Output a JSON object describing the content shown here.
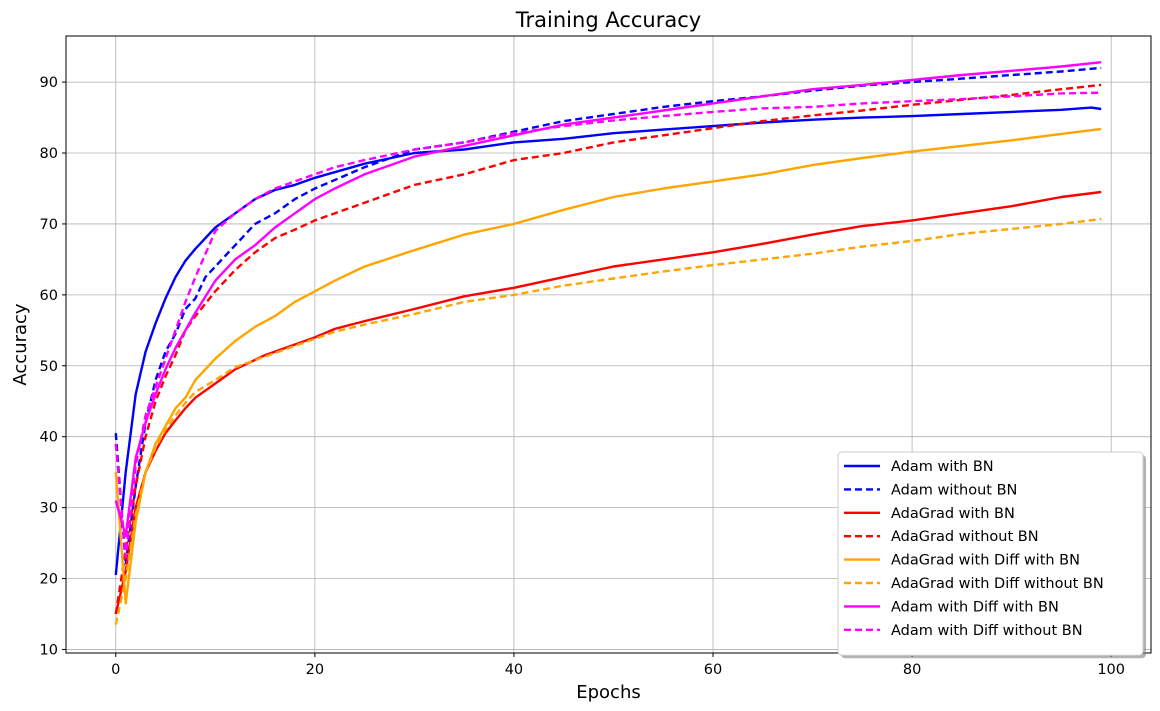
{
  "chart_data": {
    "type": "line",
    "title": "Training Accuracy",
    "xlabel": "Epochs",
    "ylabel": "Accuracy",
    "xlim": [
      -5,
      104
    ],
    "ylim": [
      9.5,
      96.5
    ],
    "xticks": [
      0,
      20,
      40,
      60,
      80,
      100
    ],
    "yticks": [
      10,
      20,
      30,
      40,
      50,
      60,
      70,
      80,
      90
    ],
    "grid": true,
    "legend_position": "lower-right",
    "series": [
      {
        "name": "Adam with BN",
        "color": "#0000ff",
        "dash": "solid",
        "points": [
          [
            0,
            20.5
          ],
          [
            1,
            35
          ],
          [
            2,
            46
          ],
          [
            3,
            52
          ],
          [
            4,
            56
          ],
          [
            5,
            59.5
          ],
          [
            6,
            62.5
          ],
          [
            7,
            64.8
          ],
          [
            8,
            66.5
          ],
          [
            10,
            69.5
          ],
          [
            12,
            71.5
          ],
          [
            14,
            73.5
          ],
          [
            16,
            74.8
          ],
          [
            18,
            75.5
          ],
          [
            20,
            76.5
          ],
          [
            25,
            78.5
          ],
          [
            30,
            80
          ],
          [
            35,
            80.5
          ],
          [
            40,
            81.5
          ],
          [
            45,
            82
          ],
          [
            50,
            82.8
          ],
          [
            55,
            83.3
          ],
          [
            60,
            83.8
          ],
          [
            65,
            84.3
          ],
          [
            70,
            84.7
          ],
          [
            75,
            85
          ],
          [
            80,
            85.2
          ],
          [
            85,
            85.5
          ],
          [
            90,
            85.8
          ],
          [
            95,
            86.1
          ],
          [
            98,
            86.4
          ],
          [
            99,
            86.2
          ]
        ]
      },
      {
        "name": "Adam without BN",
        "color": "#0000ff",
        "dash": "dashed",
        "points": [
          [
            0,
            40.5
          ],
          [
            1,
            22
          ],
          [
            2,
            33
          ],
          [
            3,
            42
          ],
          [
            4,
            48
          ],
          [
            5,
            52
          ],
          [
            6,
            54.5
          ],
          [
            7,
            58
          ],
          [
            8,
            59.5
          ],
          [
            9,
            62.5
          ],
          [
            10,
            64
          ],
          [
            12,
            67
          ],
          [
            14,
            70
          ],
          [
            16,
            71.5
          ],
          [
            18,
            73.5
          ],
          [
            20,
            75
          ],
          [
            25,
            78
          ],
          [
            30,
            80.5
          ],
          [
            35,
            81.5
          ],
          [
            40,
            83
          ],
          [
            45,
            84.5
          ],
          [
            50,
            85.5
          ],
          [
            55,
            86.5
          ],
          [
            60,
            87.3
          ],
          [
            65,
            88
          ],
          [
            70,
            88.8
          ],
          [
            75,
            89.5
          ],
          [
            80,
            90
          ],
          [
            85,
            90.5
          ],
          [
            90,
            91
          ],
          [
            95,
            91.5
          ],
          [
            99,
            92
          ]
        ]
      },
      {
        "name": "AdaGrad with BN",
        "color": "#ff0000",
        "dash": "solid",
        "points": [
          [
            0,
            15
          ],
          [
            1,
            21
          ],
          [
            2,
            30
          ],
          [
            3,
            35
          ],
          [
            4,
            38
          ],
          [
            5,
            40.5
          ],
          [
            6,
            42.3
          ],
          [
            7,
            44
          ],
          [
            8,
            45.5
          ],
          [
            10,
            47.5
          ],
          [
            12,
            49.5
          ],
          [
            15,
            51.5
          ],
          [
            18,
            53
          ],
          [
            20,
            54
          ],
          [
            22,
            55.2
          ],
          [
            25,
            56.3
          ],
          [
            30,
            58
          ],
          [
            35,
            59.8
          ],
          [
            40,
            61
          ],
          [
            45,
            62.5
          ],
          [
            50,
            64
          ],
          [
            55,
            65
          ],
          [
            60,
            66
          ],
          [
            65,
            67.2
          ],
          [
            70,
            68.5
          ],
          [
            75,
            69.7
          ],
          [
            80,
            70.5
          ],
          [
            85,
            71.5
          ],
          [
            90,
            72.5
          ],
          [
            95,
            73.8
          ],
          [
            99,
            74.5
          ]
        ]
      },
      {
        "name": "AdaGrad without BN",
        "color": "#ff0000",
        "dash": "dashed",
        "points": [
          [
            0,
            15
          ],
          [
            1,
            24
          ],
          [
            2,
            33
          ],
          [
            3,
            40
          ],
          [
            4,
            45
          ],
          [
            5,
            48.5
          ],
          [
            6,
            51.5
          ],
          [
            7,
            55
          ],
          [
            8,
            57
          ],
          [
            10,
            60.5
          ],
          [
            12,
            63.5
          ],
          [
            14,
            66
          ],
          [
            16,
            68
          ],
          [
            18,
            69.2
          ],
          [
            20,
            70.5
          ],
          [
            25,
            73
          ],
          [
            30,
            75.5
          ],
          [
            35,
            77
          ],
          [
            40,
            79
          ],
          [
            45,
            80
          ],
          [
            50,
            81.5
          ],
          [
            55,
            82.5
          ],
          [
            60,
            83.5
          ],
          [
            65,
            84.5
          ],
          [
            70,
            85.3
          ],
          [
            75,
            86
          ],
          [
            80,
            86.8
          ],
          [
            85,
            87.5
          ],
          [
            90,
            88.2
          ],
          [
            95,
            89
          ],
          [
            99,
            89.6
          ]
        ]
      },
      {
        "name": "AdaGrad with Diff with BN",
        "color": "#ffa500",
        "dash": "solid",
        "points": [
          [
            0,
            35
          ],
          [
            1,
            16.5
          ],
          [
            2,
            28
          ],
          [
            3,
            35
          ],
          [
            4,
            39
          ],
          [
            5,
            41.5
          ],
          [
            6,
            44
          ],
          [
            7,
            45.5
          ],
          [
            8,
            48
          ],
          [
            10,
            51
          ],
          [
            12,
            53.5
          ],
          [
            14,
            55.5
          ],
          [
            16,
            57
          ],
          [
            18,
            59
          ],
          [
            20,
            60.5
          ],
          [
            22,
            62
          ],
          [
            25,
            64
          ],
          [
            30,
            66.3
          ],
          [
            35,
            68.5
          ],
          [
            40,
            70
          ],
          [
            45,
            72
          ],
          [
            50,
            73.8
          ],
          [
            55,
            75
          ],
          [
            60,
            76
          ],
          [
            65,
            77
          ],
          [
            70,
            78.3
          ],
          [
            75,
            79.3
          ],
          [
            80,
            80.2
          ],
          [
            85,
            81
          ],
          [
            90,
            81.8
          ],
          [
            95,
            82.7
          ],
          [
            99,
            83.4
          ]
        ]
      },
      {
        "name": "AdaGrad with Diff without BN",
        "color": "#ffa500",
        "dash": "dashed",
        "points": [
          [
            0,
            13.5
          ],
          [
            1,
            20
          ],
          [
            2,
            29
          ],
          [
            3,
            35
          ],
          [
            4,
            38.5
          ],
          [
            5,
            41
          ],
          [
            6,
            43
          ],
          [
            7,
            44.8
          ],
          [
            8,
            46.3
          ],
          [
            10,
            48
          ],
          [
            12,
            49.8
          ],
          [
            15,
            51.3
          ],
          [
            18,
            52.8
          ],
          [
            20,
            53.8
          ],
          [
            22,
            54.8
          ],
          [
            25,
            55.8
          ],
          [
            30,
            57.3
          ],
          [
            35,
            59
          ],
          [
            40,
            60
          ],
          [
            45,
            61.3
          ],
          [
            50,
            62.3
          ],
          [
            55,
            63.3
          ],
          [
            60,
            64.2
          ],
          [
            65,
            65
          ],
          [
            70,
            65.8
          ],
          [
            75,
            66.8
          ],
          [
            80,
            67.6
          ],
          [
            85,
            68.6
          ],
          [
            90,
            69.3
          ],
          [
            95,
            70
          ],
          [
            99,
            70.7
          ]
        ]
      },
      {
        "name": "Adam with Diff with BN",
        "color": "#ff00ff",
        "dash": "solid",
        "points": [
          [
            0,
            31
          ],
          [
            1,
            26
          ],
          [
            2,
            37
          ],
          [
            3,
            42
          ],
          [
            4,
            46
          ],
          [
            5,
            49.5
          ],
          [
            6,
            52.5
          ],
          [
            7,
            55
          ],
          [
            8,
            57.5
          ],
          [
            10,
            62
          ],
          [
            12,
            65
          ],
          [
            14,
            67
          ],
          [
            16,
            69.5
          ],
          [
            18,
            71.5
          ],
          [
            20,
            73.5
          ],
          [
            22,
            75
          ],
          [
            25,
            77
          ],
          [
            30,
            79.5
          ],
          [
            35,
            81
          ],
          [
            40,
            82.5
          ],
          [
            45,
            84
          ],
          [
            50,
            85
          ],
          [
            55,
            86
          ],
          [
            60,
            87
          ],
          [
            65,
            88
          ],
          [
            70,
            89
          ],
          [
            75,
            89.6
          ],
          [
            80,
            90.3
          ],
          [
            85,
            91
          ],
          [
            90,
            91.6
          ],
          [
            95,
            92.2
          ],
          [
            99,
            92.8
          ]
        ]
      },
      {
        "name": "Adam with Diff without BN",
        "color": "#ff00ff",
        "dash": "dashed",
        "points": [
          [
            0,
            39
          ],
          [
            1,
            23
          ],
          [
            2,
            36
          ],
          [
            3,
            43
          ],
          [
            4,
            47
          ],
          [
            5,
            51
          ],
          [
            6,
            55
          ],
          [
            7,
            59
          ],
          [
            8,
            62.5
          ],
          [
            10,
            69
          ],
          [
            12,
            71.5
          ],
          [
            14,
            73.5
          ],
          [
            16,
            75
          ],
          [
            18,
            76
          ],
          [
            20,
            77
          ],
          [
            22,
            78
          ],
          [
            25,
            79
          ],
          [
            30,
            80.5
          ],
          [
            35,
            81.5
          ],
          [
            40,
            82.8
          ],
          [
            45,
            83.8
          ],
          [
            50,
            84.6
          ],
          [
            55,
            85.2
          ],
          [
            60,
            85.8
          ],
          [
            65,
            86.3
          ],
          [
            70,
            86.5
          ],
          [
            75,
            87
          ],
          [
            80,
            87.3
          ],
          [
            85,
            87.6
          ],
          [
            90,
            88
          ],
          [
            95,
            88.4
          ],
          [
            99,
            88.5
          ]
        ]
      }
    ]
  }
}
